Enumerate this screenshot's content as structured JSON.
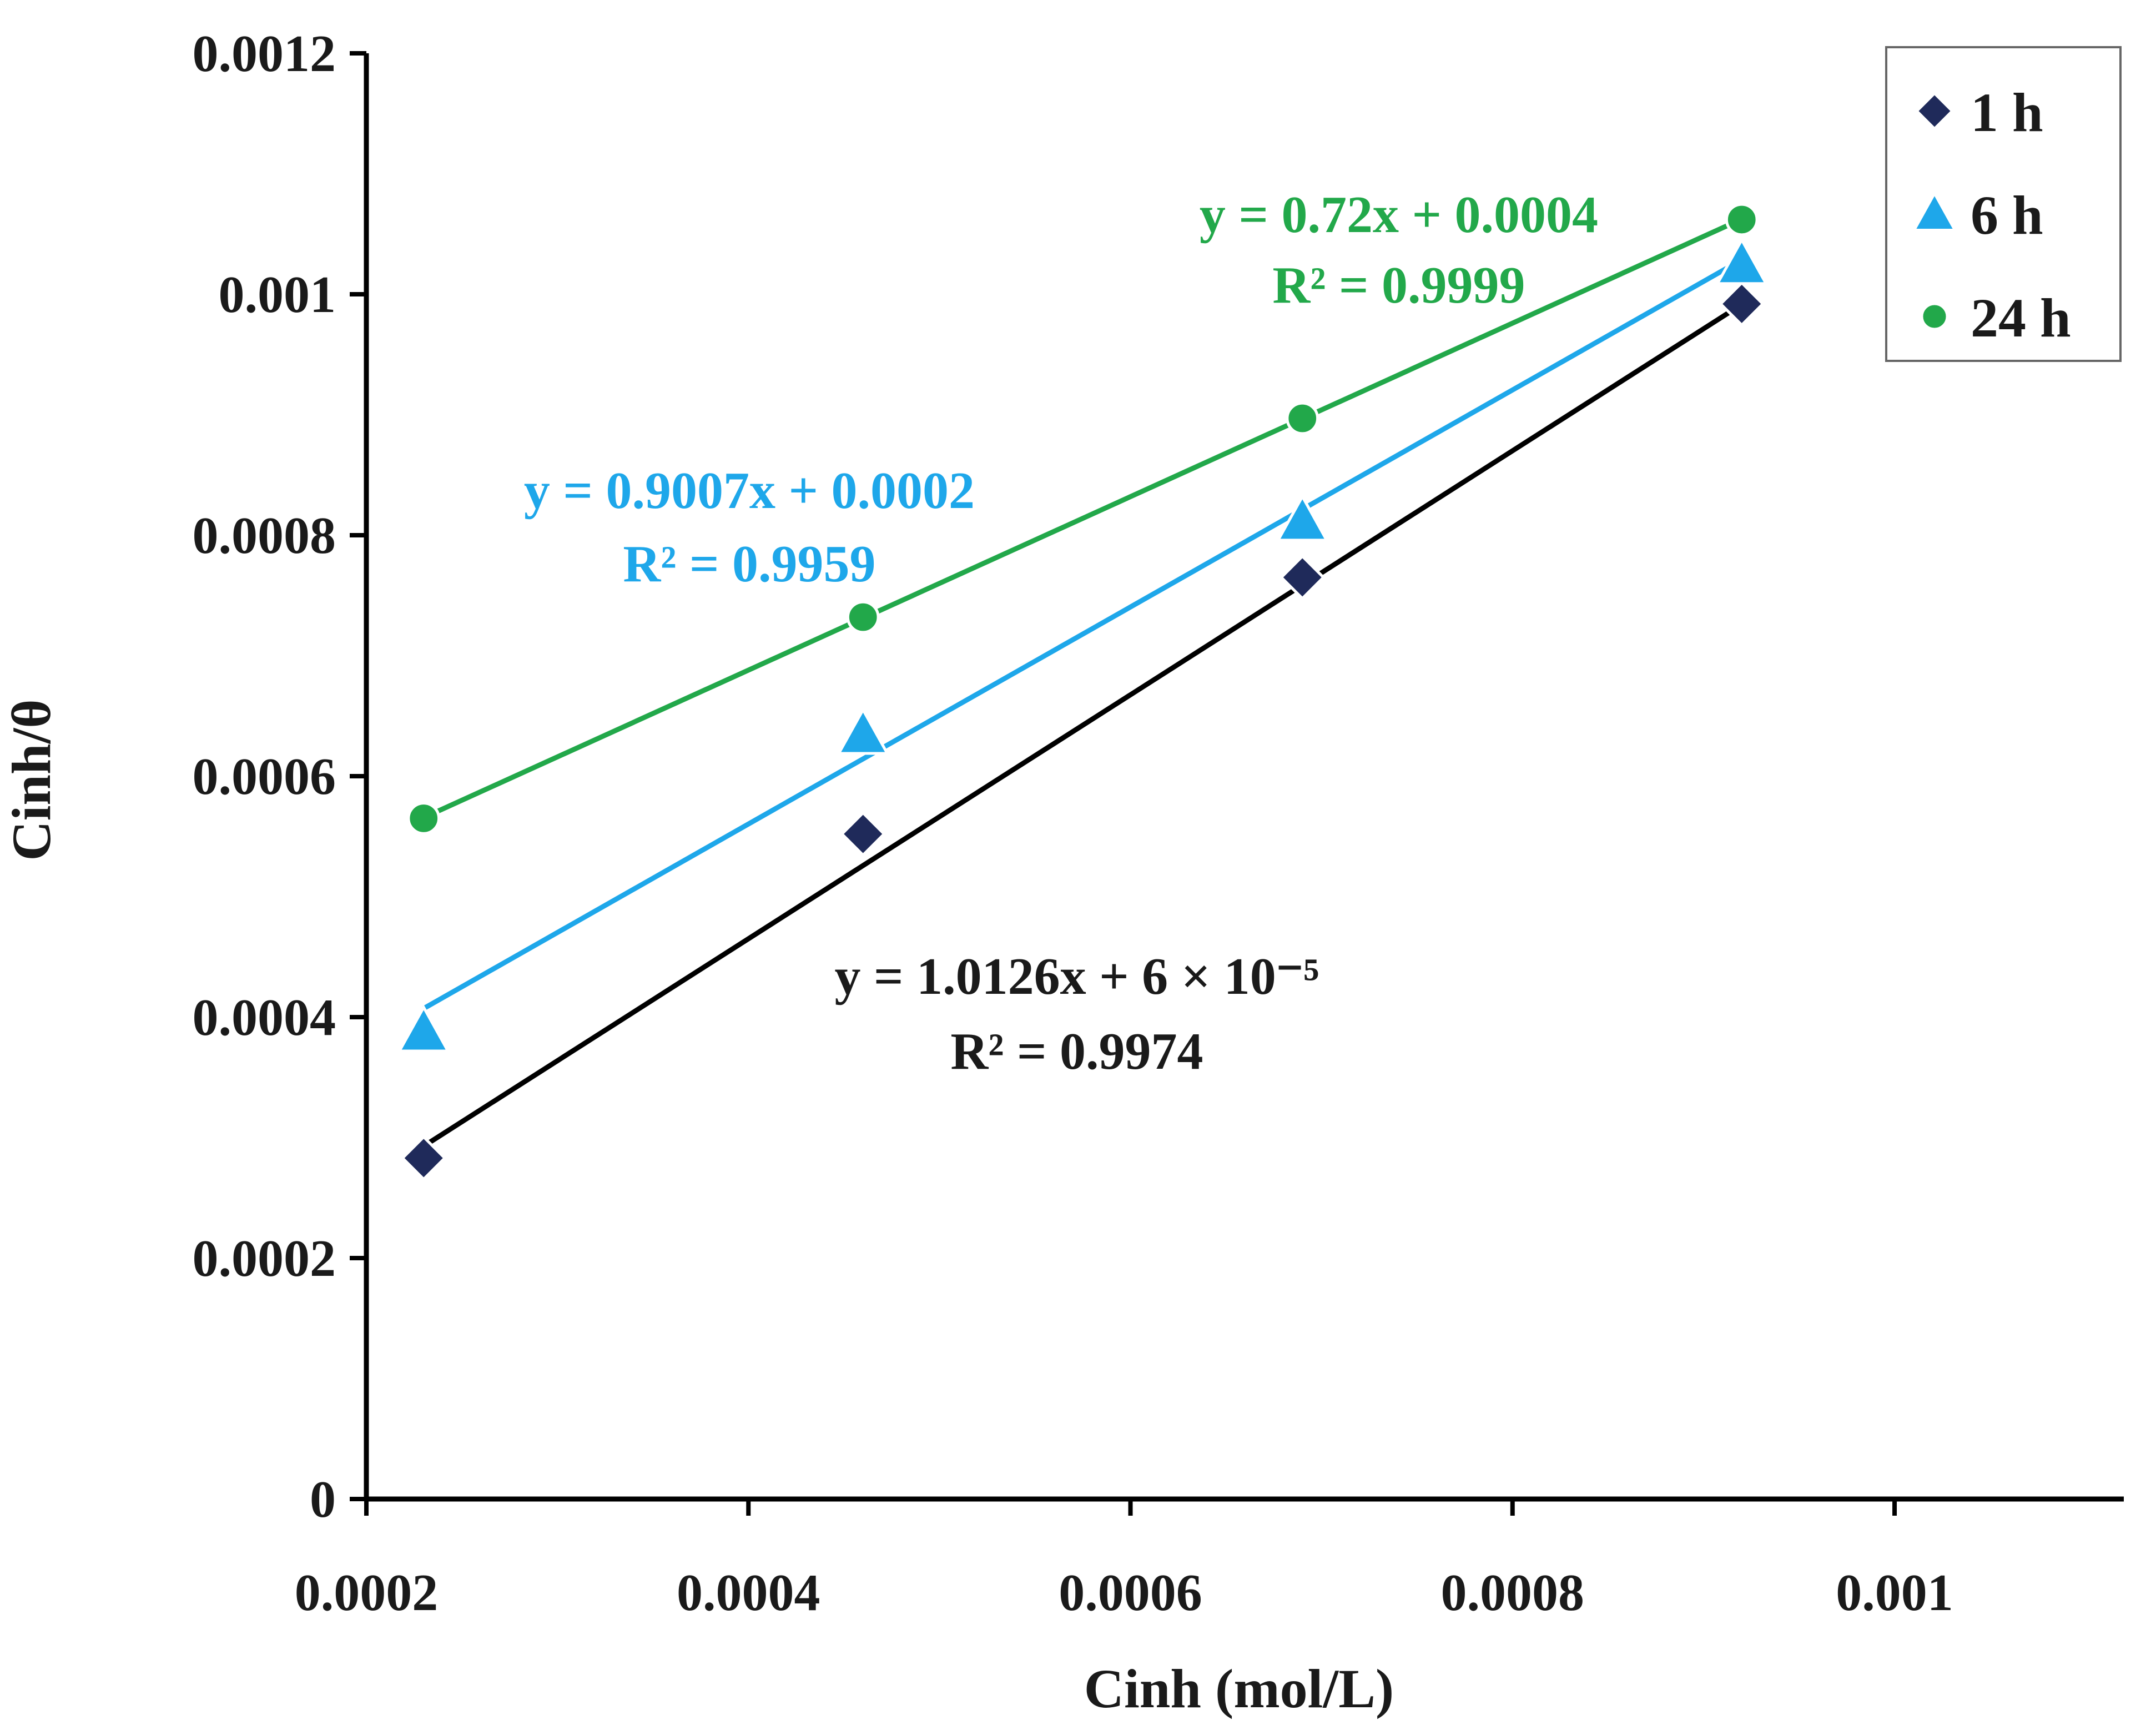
{
  "chart_data": {
    "type": "scatter",
    "title": "",
    "xlabel": "Cinh (mol/L)",
    "ylabel": "Cinh/θ",
    "xlim": [
      0.0002,
      0.00112
    ],
    "ylim": [
      0,
      0.0012
    ],
    "xticks": [
      {
        "value": 0.0002,
        "label": "0.0002"
      },
      {
        "value": 0.0004,
        "label": "0.0004"
      },
      {
        "value": 0.0006,
        "label": "0.0006"
      },
      {
        "value": 0.0008,
        "label": "0.0008"
      },
      {
        "value": 0.001,
        "label": "0.001"
      }
    ],
    "yticks": [
      {
        "value": 0,
        "label": "0"
      },
      {
        "value": 0.0002,
        "label": "0.0002"
      },
      {
        "value": 0.0004,
        "label": "0.0004"
      },
      {
        "value": 0.0006,
        "label": "0.0006"
      },
      {
        "value": 0.0008,
        "label": "0.0008"
      },
      {
        "value": 0.001,
        "label": "0.001"
      },
      {
        "value": 0.0012,
        "label": "0.0012"
      }
    ],
    "grid": false,
    "legend_position": "top-right",
    "series": [
      {
        "name": "1 h",
        "marker": "diamond",
        "color": "#1f2a5a",
        "line_color": "#000000",
        "x": [
          0.00023,
          0.00046,
          0.00069,
          0.00092
        ],
        "y": [
          0.000283,
          0.000552,
          0.000765,
          0.000992
        ],
        "trend": {
          "slope": 1.0126,
          "intercept": 6e-05,
          "equation": "y = 1.0126x + 6 × 10⁻⁵",
          "r2": "R² = 0.9974"
        }
      },
      {
        "name": "6 h",
        "marker": "triangle",
        "color": "#1ea7ea",
        "line_color": "#1ea7ea",
        "x": [
          0.00023,
          0.00046,
          0.00069,
          0.00092
        ],
        "y": [
          0.000388,
          0.000635,
          0.000812,
          0.001025
        ],
        "trend": {
          "slope": 0.9007,
          "intercept": 0.0002,
          "equation": "y = 0.9007x + 0.0002",
          "r2": "R² = 0.9959"
        }
      },
      {
        "name": "24 h",
        "marker": "circle",
        "color": "#22a84a",
        "line_color": "#22a84a",
        "x": [
          0.00023,
          0.00046,
          0.00069,
          0.00092
        ],
        "y": [
          0.000565,
          0.000732,
          0.000897,
          0.001062
        ],
        "trend": {
          "slope": 0.72,
          "intercept": 0.0004,
          "equation": "y = 0.72x + 0.0004",
          "r2": "R² = 0.9999"
        }
      }
    ]
  }
}
